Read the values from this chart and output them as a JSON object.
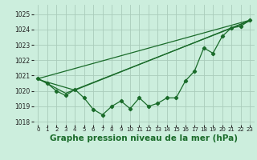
{
  "bg_color": "#cceedd",
  "grid_color": "#aaccbb",
  "line_color": "#1a6b2a",
  "xlabel": "Graphe pression niveau de la mer (hPa)",
  "xlabel_fontsize": 7.5,
  "ylim": [
    1017.8,
    1025.6
  ],
  "xlim": [
    -0.5,
    23.5
  ],
  "yticks": [
    1018,
    1019,
    1020,
    1021,
    1022,
    1023,
    1024,
    1025
  ],
  "xticks": [
    0,
    1,
    2,
    3,
    4,
    5,
    6,
    7,
    8,
    9,
    10,
    11,
    12,
    13,
    14,
    15,
    16,
    17,
    18,
    19,
    20,
    21,
    22,
    23
  ],
  "series1_x": [
    0,
    1,
    2,
    3,
    4,
    5,
    6,
    7,
    8,
    9,
    10,
    11,
    12,
    13,
    14,
    15,
    16,
    17,
    18,
    19,
    20,
    21,
    22,
    23
  ],
  "series1_y": [
    1020.8,
    1020.5,
    1020.0,
    1019.7,
    1020.1,
    1019.55,
    1018.8,
    1018.45,
    1019.0,
    1019.35,
    1018.85,
    1019.55,
    1019.0,
    1019.2,
    1019.55,
    1019.55,
    1020.65,
    1021.3,
    1022.8,
    1022.45,
    1023.55,
    1024.1,
    1024.2,
    1024.6
  ],
  "line1_x": [
    0,
    23
  ],
  "line1_y": [
    1020.8,
    1024.6
  ],
  "line2_x": [
    0,
    3,
    23
  ],
  "line2_y": [
    1020.8,
    1019.85,
    1024.55
  ],
  "line3_x": [
    0,
    4,
    23
  ],
  "line3_y": [
    1020.75,
    1020.05,
    1024.58
  ]
}
